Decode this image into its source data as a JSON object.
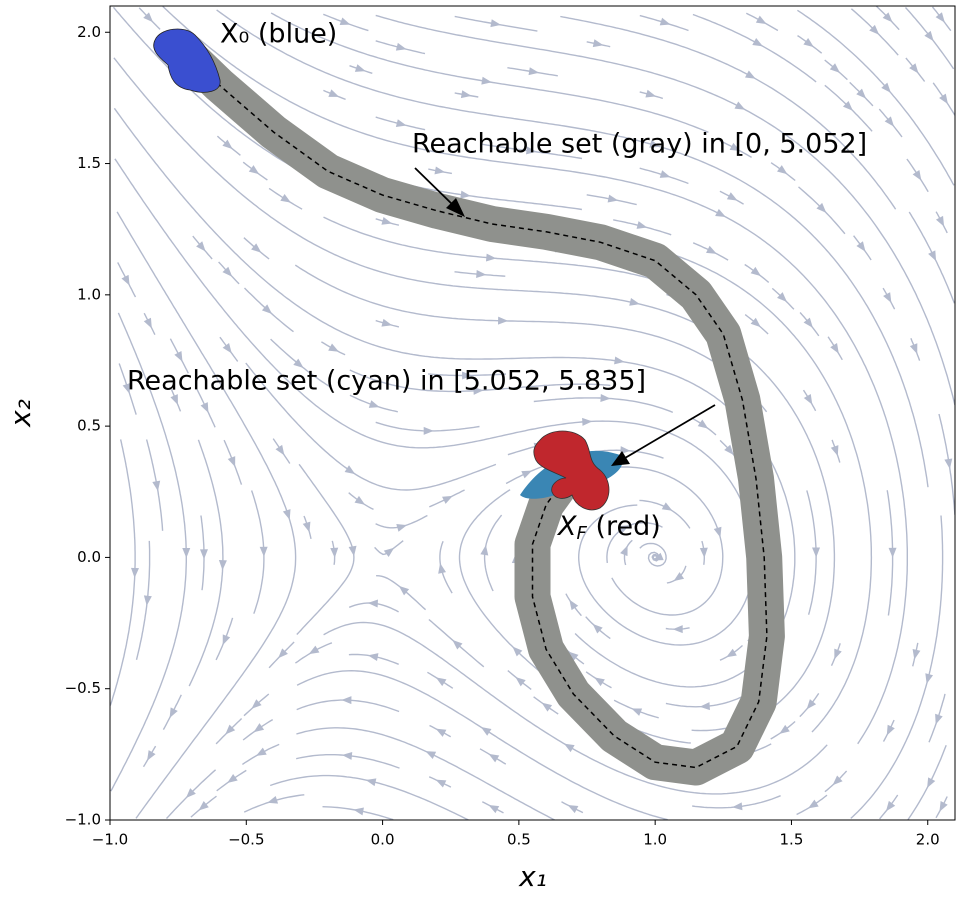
{
  "chart_data": {
    "type": "line",
    "xlabel": "x₁",
    "ylabel": "x₂",
    "annotations": {
      "x0": "X₀ (blue)",
      "gray": "Reachable set (gray) in [0, 5.052]",
      "cyan": "Reachable set (cyan) in [5.052, 5.835]",
      "xf_main": "X",
      "xf_sub": "F",
      "xf_rest": " (red)"
    },
    "xlim": [
      -1.0,
      2.1
    ],
    "ylim": [
      -1.0,
      2.1
    ],
    "xticks": [
      {
        "value": -1.0,
        "label": "−1.0"
      },
      {
        "value": -0.5,
        "label": "−0.5"
      },
      {
        "value": 0.0,
        "label": "0.0"
      },
      0.5,
      {
        "value": 1.0,
        "label": "1.0"
      },
      1.5,
      {
        "value": 2.0,
        "label": "2.0"
      }
    ],
    "yticks": [
      {
        "value": -1.0,
        "label": "−1.0"
      },
      {
        "value": -0.5,
        "label": "−0.5"
      },
      {
        "value": 0.0,
        "label": "0.0"
      },
      0.5,
      {
        "value": 1.0,
        "label": "1.0"
      },
      1.5,
      {
        "value": 2.0,
        "label": "2.0"
      }
    ],
    "stream_color": "#b3bacd",
    "tube_color": "#8f918d",
    "series": [
      {
        "color": "#000000",
        "x": [
          -0.75,
          -0.6,
          -0.4,
          -0.2,
          0.0,
          0.2,
          0.4,
          0.6,
          0.8,
          1.0,
          1.15,
          1.25,
          1.32,
          1.37,
          1.4,
          1.41,
          1.38,
          1.3,
          1.15,
          1.0,
          0.85,
          0.7,
          0.6,
          0.55,
          0.55,
          0.6,
          0.69
        ],
        "values": [
          1.95,
          1.8,
          1.62,
          1.47,
          1.38,
          1.32,
          1.27,
          1.24,
          1.2,
          1.13,
          1.0,
          0.85,
          0.6,
          0.3,
          0.0,
          -0.3,
          -0.55,
          -0.72,
          -0.8,
          -0.78,
          -0.68,
          -0.52,
          -0.35,
          -0.15,
          0.05,
          0.2,
          0.33
        ]
      }
    ]
  }
}
